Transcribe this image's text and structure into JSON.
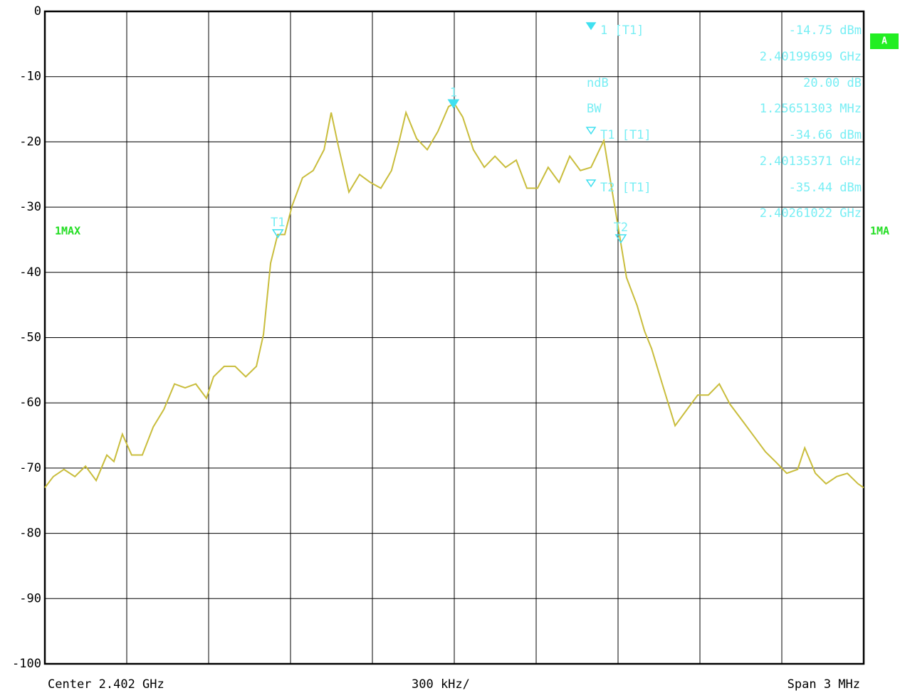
{
  "chart_data": {
    "type": "line",
    "ylim": [
      -100,
      0
    ],
    "yticks": [
      0,
      -10,
      -20,
      -30,
      -40,
      -50,
      -60,
      -70,
      -80,
      -90,
      -100
    ],
    "xlim": [
      2.4005,
      2.4035
    ],
    "grid": true,
    "x_axis_labels": {
      "center": "Center 2.402 GHz",
      "division": "300 kHz/",
      "span": "Span 3 MHz"
    },
    "badge": "A",
    "series": [
      {
        "name": "1MAX",
        "name_right": "1MA",
        "color": "#c9bd3c",
        "x": [
          2.4005,
          2.400531,
          2.40057,
          2.40061,
          2.400649,
          2.400688,
          2.400727,
          2.400753,
          2.400784,
          2.400818,
          2.400857,
          2.400897,
          2.400936,
          2.400975,
          2.401014,
          2.401053,
          2.401092,
          2.401118,
          2.401157,
          2.401197,
          2.401236,
          2.401275,
          2.401301,
          2.401327,
          2.401353,
          2.401379,
          2.401405,
          2.401444,
          2.401483,
          2.401523,
          2.401549,
          2.401575,
          2.401614,
          2.401653,
          2.401692,
          2.401731,
          2.40177,
          2.401797,
          2.401823,
          2.401862,
          2.401901,
          2.40194,
          2.401979,
          2.402,
          2.402031,
          2.40207,
          2.40211,
          2.402149,
          2.402188,
          2.402227,
          2.402266,
          2.402305,
          2.402344,
          2.402384,
          2.402423,
          2.402462,
          2.402501,
          2.402548,
          2.402579,
          2.402605,
          2.402631,
          2.40267,
          2.402697,
          2.402723,
          2.402762,
          2.402809,
          2.402853,
          2.402892,
          2.402931,
          2.402971,
          2.40301,
          2.403062,
          2.403101,
          2.40314,
          2.403179,
          2.403218,
          2.403258,
          2.403284,
          2.403323,
          2.403362,
          2.403401,
          2.40344,
          2.403479,
          2.4035
        ],
        "values": [
          -73,
          -71.3,
          -70.2,
          -71.3,
          -69.7,
          -71.9,
          -68,
          -69,
          -64.8,
          -68,
          -68,
          -63.7,
          -61,
          -57.1,
          -57.7,
          -57.1,
          -59.3,
          -56,
          -54.4,
          -54.4,
          -56,
          -54.4,
          -49.5,
          -38.6,
          -34.2,
          -34.2,
          -29.9,
          -25.5,
          -24.4,
          -21.2,
          -15.5,
          -20.6,
          -27.7,
          -25,
          -26.2,
          -27.1,
          -24.4,
          -20.1,
          -15.5,
          -19.5,
          -21.2,
          -18.4,
          -14.6,
          -14.1,
          -16.2,
          -21.2,
          -23.9,
          -22.2,
          -23.9,
          -22.8,
          -27.1,
          -27.1,
          -23.9,
          -26.2,
          -22.2,
          -24.4,
          -23.9,
          -19.8,
          -27.7,
          -34.2,
          -40.8,
          -45.1,
          -49,
          -51.7,
          -57.1,
          -63.5,
          -61,
          -58.8,
          -58.8,
          -57.1,
          -60.2,
          -63.1,
          -65.3,
          -67.5,
          -69.1,
          -70.8,
          -70.2,
          -66.9,
          -70.8,
          -72.4,
          -71.3,
          -70.8,
          -72.4,
          -73
        ]
      }
    ],
    "markers": [
      {
        "label": "1",
        "name": "1 [T1]",
        "filled": true,
        "level": -14.75,
        "level_label": "-14.75 dBm",
        "freq": 2.40199699,
        "freq_label": "2.40199699 GHz"
      },
      {
        "label": "T1",
        "name": "T1 [T1]",
        "filled": false,
        "level": -34.66,
        "level_label": "-34.66 dBm",
        "freq": 2.40135371,
        "freq_label": "2.40135371 GHz"
      },
      {
        "label": "T2",
        "name": "T2 [T1]",
        "filled": false,
        "level": -35.44,
        "level_label": "-35.44 dBm",
        "freq": 2.40261022,
        "freq_label": "2.40261022 GHz"
      }
    ],
    "ndb": {
      "label": "ndB",
      "text": "20.00 dB"
    },
    "bw": {
      "label": "BW",
      "text": "1.25651303 MHz"
    }
  }
}
